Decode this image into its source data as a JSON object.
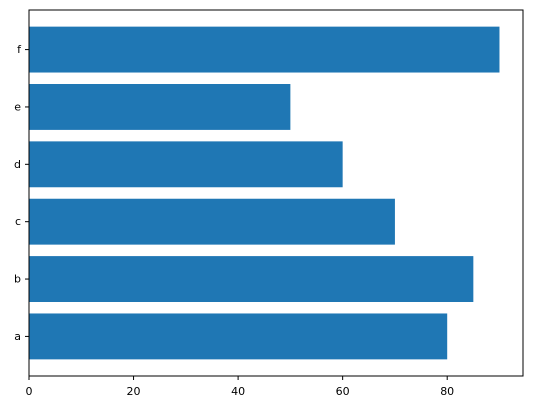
{
  "chart_data": {
    "type": "bar",
    "orientation": "horizontal",
    "title": "",
    "xlabel": "",
    "ylabel": "",
    "categories": [
      "a",
      "b",
      "c",
      "d",
      "e",
      "f"
    ],
    "values": [
      80,
      85,
      70,
      60,
      50,
      90
    ],
    "xlim": [
      0,
      94.5
    ],
    "x_ticks": [
      0,
      20,
      40,
      60,
      80
    ],
    "x_tick_labels": [
      "0",
      "20",
      "40",
      "60",
      "80"
    ],
    "grid": false,
    "legend": "none",
    "bar_color": "#1f77b4"
  }
}
